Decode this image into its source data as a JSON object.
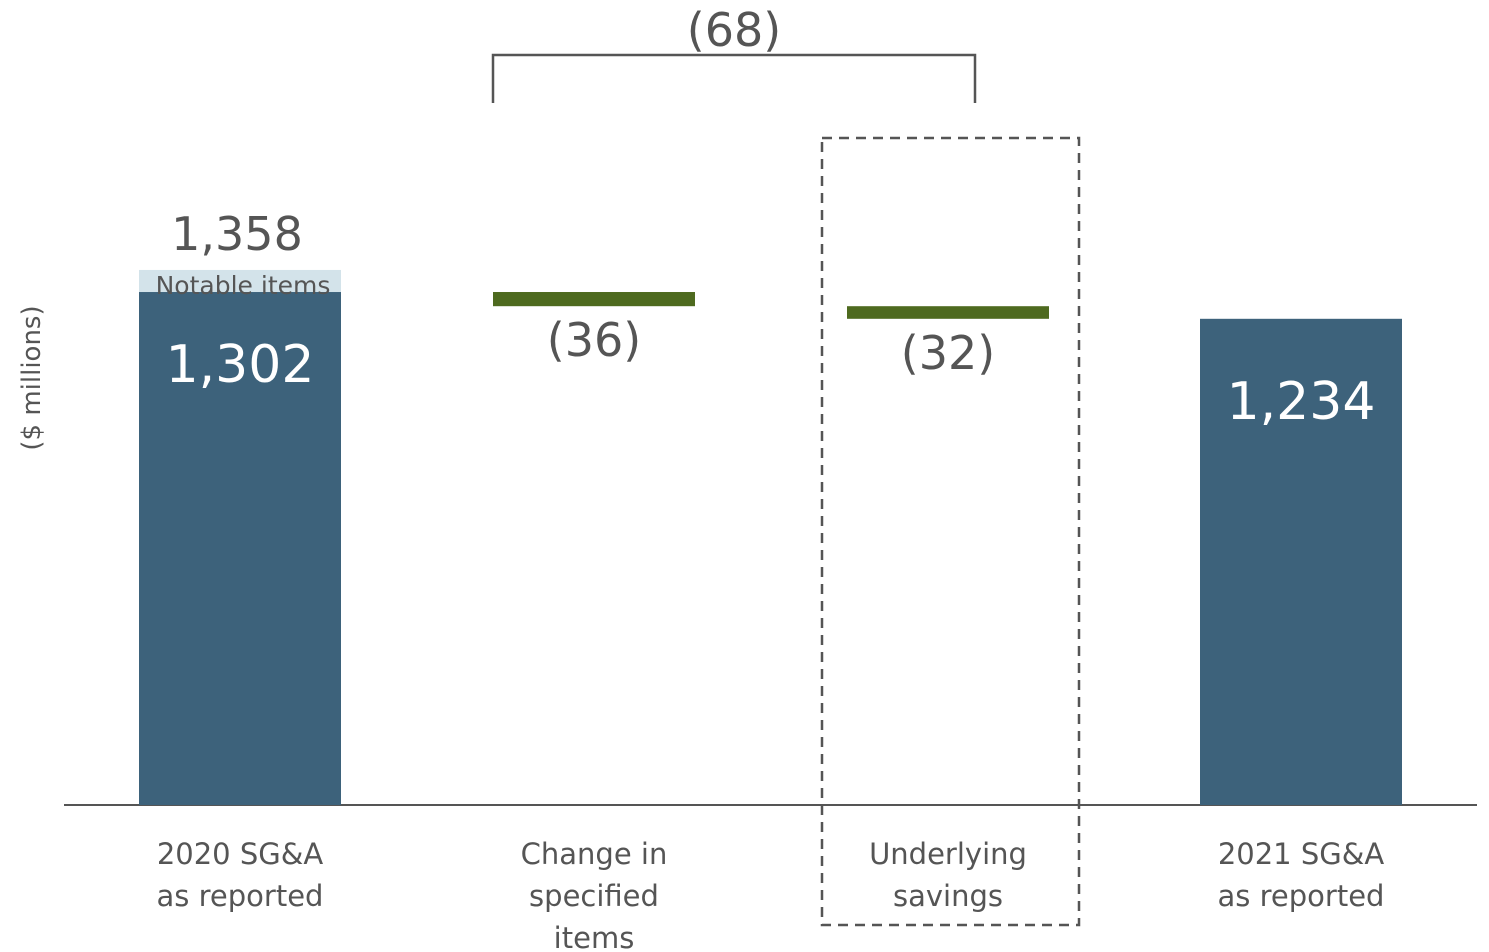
{
  "chart_data": {
    "type": "bar",
    "subtype": "waterfall",
    "ylabel": "($ millions)",
    "ylim": [
      0,
      1400
    ],
    "grid": false,
    "categories": [
      [
        "2020 SG&A",
        "as reported"
      ],
      [
        "Change in",
        "specified",
        "items"
      ],
      [
        "Underlying",
        "savings"
      ],
      [
        "2021 SG&A",
        "as reported"
      ]
    ],
    "bars": [
      {
        "kind": "total",
        "base": 0,
        "value": 1302,
        "label": "1,302"
      },
      {
        "kind": "delta",
        "start": 1302,
        "value": -36,
        "label": "(36)"
      },
      {
        "kind": "delta",
        "start": 1266,
        "value": -32,
        "label": "(32)"
      },
      {
        "kind": "total",
        "base": 0,
        "value": 1234,
        "label": "1,234"
      }
    ],
    "stacked_segment": {
      "bar_index": 0,
      "base": 1302,
      "value": 56,
      "label": "Notable items",
      "total": 1358,
      "total_label": "1,358"
    },
    "bracket": {
      "from_index": 1,
      "to_index": 2,
      "label": "(68)"
    },
    "highlight_box_index": 2,
    "colors": {
      "total": "#3d627b",
      "notable": "#d3e3ea",
      "delta": "#4e6a1f",
      "text_dark": "#555555",
      "text_white": "#ffffff",
      "axis": "#555555",
      "bracket": "#555555"
    }
  }
}
